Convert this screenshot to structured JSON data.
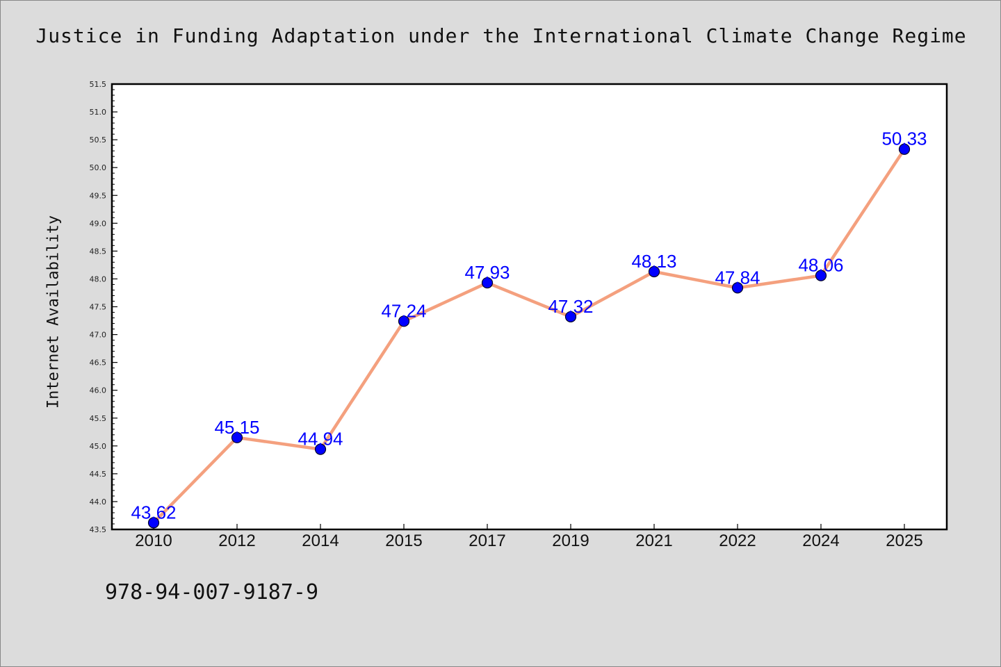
{
  "chart_data": {
    "type": "line",
    "title": "Justice in Funding Adaptation under the International Climate Change Regime",
    "xlabel": "",
    "ylabel": "Internet Availability",
    "categories": [
      "2010",
      "2012",
      "2014",
      "2015",
      "2017",
      "2019",
      "2021",
      "2022",
      "2024",
      "2025"
    ],
    "series": [
      {
        "values": [
          43.62,
          45.15,
          44.94,
          47.24,
          47.93,
          47.32,
          48.13,
          47.84,
          48.06,
          50.33
        ],
        "value_labels": [
          "43.62",
          "45.15",
          "44.94",
          "47.24",
          "47.93",
          "47.32",
          "48.13",
          "47.84",
          "48.06",
          "50.33"
        ],
        "line_color": "#f4a07e",
        "marker_color": "#0000ff"
      }
    ],
    "ylim": [
      43.5,
      51.5
    ],
    "y_ticks": [
      "43.5",
      "44.0",
      "44.5",
      "45.0",
      "45.5",
      "46.0",
      "46.5",
      "47.0",
      "47.5",
      "48.0",
      "48.5",
      "49.0",
      "49.5",
      "50.0",
      "50.5",
      "51.0",
      "51.5"
    ],
    "grid": false,
    "legend": "none",
    "footer_text": "978-94-007-9187-9"
  }
}
